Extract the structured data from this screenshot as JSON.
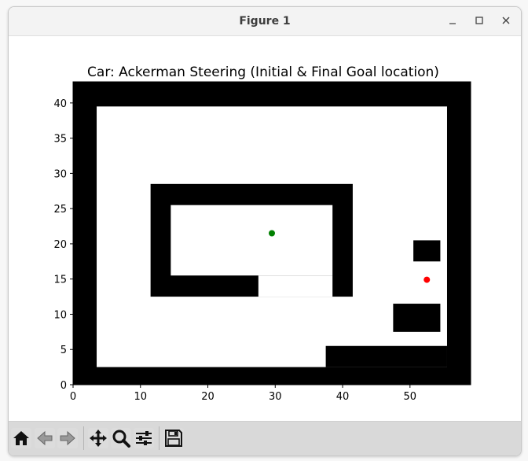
{
  "window": {
    "title": "Figure 1",
    "controls": [
      "minimize-icon",
      "maximize-icon",
      "close-icon"
    ]
  },
  "colors": {
    "obstacle": "#000000",
    "free": "#ffffff",
    "start": "#008000",
    "goal": "#ff0000"
  },
  "chart_data": {
    "type": "scatter",
    "title": "Car: Ackerman Steering (Initial & Final Goal location)",
    "xlabel": "",
    "ylabel": "",
    "xlim": [
      0,
      59
    ],
    "ylim": [
      0,
      43
    ],
    "xticks": [
      0,
      10,
      20,
      30,
      40,
      50
    ],
    "yticks": [
      0,
      5,
      10,
      15,
      20,
      25,
      30,
      35,
      40
    ],
    "grid": false,
    "background": "occupancy grid map (black = obstacle, white = free)",
    "free_regions": [
      [
        3.5,
        2.5,
        55.5,
        39.5
      ]
    ],
    "obstacles": [
      [
        37.5,
        2.5,
        55.5,
        5.5
      ],
      [
        11.5,
        12.5,
        41.5,
        28.5
      ],
      [
        47.5,
        7.5,
        54.5,
        11.5
      ],
      [
        50.5,
        17.5,
        54.5,
        20.5
      ]
    ],
    "cutouts": [
      [
        14.5,
        15.5,
        38.5,
        25.5
      ],
      [
        27.5,
        12.5,
        38.5,
        15.5
      ]
    ],
    "series": [
      {
        "name": "",
        "points": [
          [
            29.5,
            21.5
          ]
        ],
        "color": "#008000"
      },
      {
        "name": "",
        "points": [
          [
            52.5,
            14.9
          ]
        ],
        "color": "#ff0000"
      }
    ]
  },
  "toolbar": {
    "buttons": [
      {
        "icon": "home-icon"
      },
      {
        "icon": "back-arrow-icon"
      },
      {
        "icon": "forward-arrow-icon"
      },
      {
        "icon": "pan-icon"
      },
      {
        "icon": "zoom-icon"
      },
      {
        "icon": "configure-subplots-icon"
      },
      {
        "icon": "save-icon"
      }
    ]
  }
}
